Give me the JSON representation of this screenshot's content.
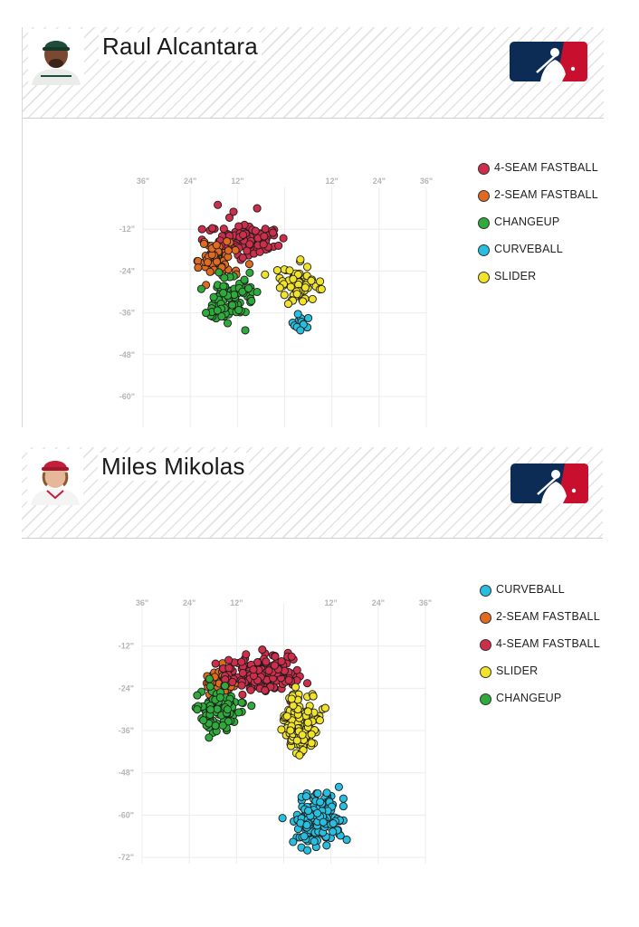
{
  "panels": [
    {
      "player": "Raul Alcantara",
      "avatar_team_color": "#1e4d3a",
      "legend": [
        {
          "label": "4-SEAM FASTBALL",
          "color": "#cc2e4b"
        },
        {
          "label": "2-SEAM FASTBALL",
          "color": "#e06b20"
        },
        {
          "label": "CHANGEUP",
          "color": "#2eab3b"
        },
        {
          "label": "CURVEBALL",
          "color": "#27bfe0"
        },
        {
          "label": "SLIDER",
          "color": "#f0e32a"
        }
      ],
      "chart_data": {
        "type": "scatter",
        "x_ticks": [
          "36\"",
          "24\"",
          "12\"",
          "",
          "12\"",
          "24\"",
          "36\""
        ],
        "y_ticks": [
          "-12\"",
          "-24\"",
          "-36\"",
          "-48\"",
          "-60\""
        ],
        "xlim": [
          -36,
          36
        ],
        "ylim": [
          -66,
          0
        ],
        "series": [
          {
            "name": "4-SEAM FASTBALL",
            "color": "#cc2e4b",
            "center": [
              -10,
              -15
            ],
            "spread": [
              3.6,
              2.2
            ],
            "count": 120,
            "extra": [
              [
                -17,
                -5
              ],
              [
                -13,
                -7
              ],
              [
                -7,
                -6
              ],
              [
                -21,
                -12
              ],
              [
                -21,
                -15
              ],
              [
                -3,
                -13
              ]
            ]
          },
          {
            "name": "2-SEAM FASTBALL",
            "color": "#e06b20",
            "center": [
              -17,
              -21
            ],
            "spread": [
              2.4,
              2.7
            ],
            "count": 60,
            "extra": [
              [
                -22,
                -23
              ],
              [
                -20,
                -28
              ],
              [
                -9,
                -22
              ]
            ]
          },
          {
            "name": "CHANGEUP",
            "color": "#2eab3b",
            "center": [
              -13.5,
              -32
            ],
            "spread": [
              2.6,
              3.0
            ],
            "count": 90,
            "extra": [
              [
                -20,
                -36
              ],
              [
                -10,
                -41
              ],
              [
                -7,
                -30
              ]
            ]
          },
          {
            "name": "CURVEBALL",
            "color": "#27bfe0",
            "center": [
              3,
              -38.5
            ],
            "spread": [
              2.0,
              1.6
            ],
            "count": 12,
            "extra": [
              [
                6,
                -37.5
              ],
              [
                4,
                -41
              ]
            ]
          },
          {
            "name": "SLIDER",
            "color": "#f0e32a",
            "center": [
              3.5,
              -28
            ],
            "spread": [
              2.4,
              2.8
            ],
            "count": 70,
            "extra": [
              [
                -5,
                -25
              ],
              [
                9,
                -27
              ]
            ]
          }
        ]
      }
    },
    {
      "player": "Miles Mikolas",
      "avatar_team_color": "#c41e3a",
      "legend": [
        {
          "label": "CURVEBALL",
          "color": "#27bfe0"
        },
        {
          "label": "2-SEAM FASTBALL",
          "color": "#e06b20"
        },
        {
          "label": "4-SEAM FASTBALL",
          "color": "#cc2e4b"
        },
        {
          "label": "SLIDER",
          "color": "#f0e32a"
        },
        {
          "label": "CHANGEUP",
          "color": "#2eab3b"
        }
      ],
      "chart_data": {
        "type": "scatter",
        "x_ticks": [
          "36\"",
          "24\"",
          "12\"",
          "",
          "12\"",
          "24\"",
          "36\""
        ],
        "y_ticks": [
          "-12\"",
          "-24\"",
          "-36\"",
          "-48\"",
          "-60\"",
          "-72\""
        ],
        "xlim": [
          -36,
          36
        ],
        "ylim": [
          -72,
          0
        ],
        "series": [
          {
            "name": "CURVEBALL",
            "color": "#27bfe0",
            "center": [
              8.5,
              -62
            ],
            "spread": [
              3.2,
              3.6
            ],
            "count": 160,
            "extra": [
              [
                14,
                -52
              ],
              [
                16,
                -67
              ],
              [
                6,
                -70
              ]
            ]
          },
          {
            "name": "2-SEAM FASTBALL",
            "color": "#e06b20",
            "center": [
              -16,
              -22
            ],
            "spread": [
              2.4,
              2.6
            ],
            "count": 70,
            "extra": []
          },
          {
            "name": "4-SEAM FASTBALL",
            "color": "#cc2e4b",
            "center": [
              -6,
              -20
            ],
            "spread": [
              4.6,
              2.4
            ],
            "count": 190,
            "extra": [
              [
                -14,
                -16
              ],
              [
                2,
                -15
              ]
            ]
          },
          {
            "name": "SLIDER",
            "color": "#f0e32a",
            "center": [
              4,
              -33
            ],
            "spread": [
              2.2,
              3.8
            ],
            "count": 150,
            "extra": [
              [
                2,
                -27
              ],
              [
                4,
                -43
              ]
            ]
          },
          {
            "name": "CHANGEUP",
            "color": "#2eab3b",
            "center": [
              -17,
              -30
            ],
            "spread": [
              2.6,
              2.8
            ],
            "count": 110,
            "extra": [
              [
                -22,
                -30
              ],
              [
                -19,
                -38
              ],
              [
                -22,
                -26
              ]
            ]
          }
        ]
      }
    }
  ]
}
